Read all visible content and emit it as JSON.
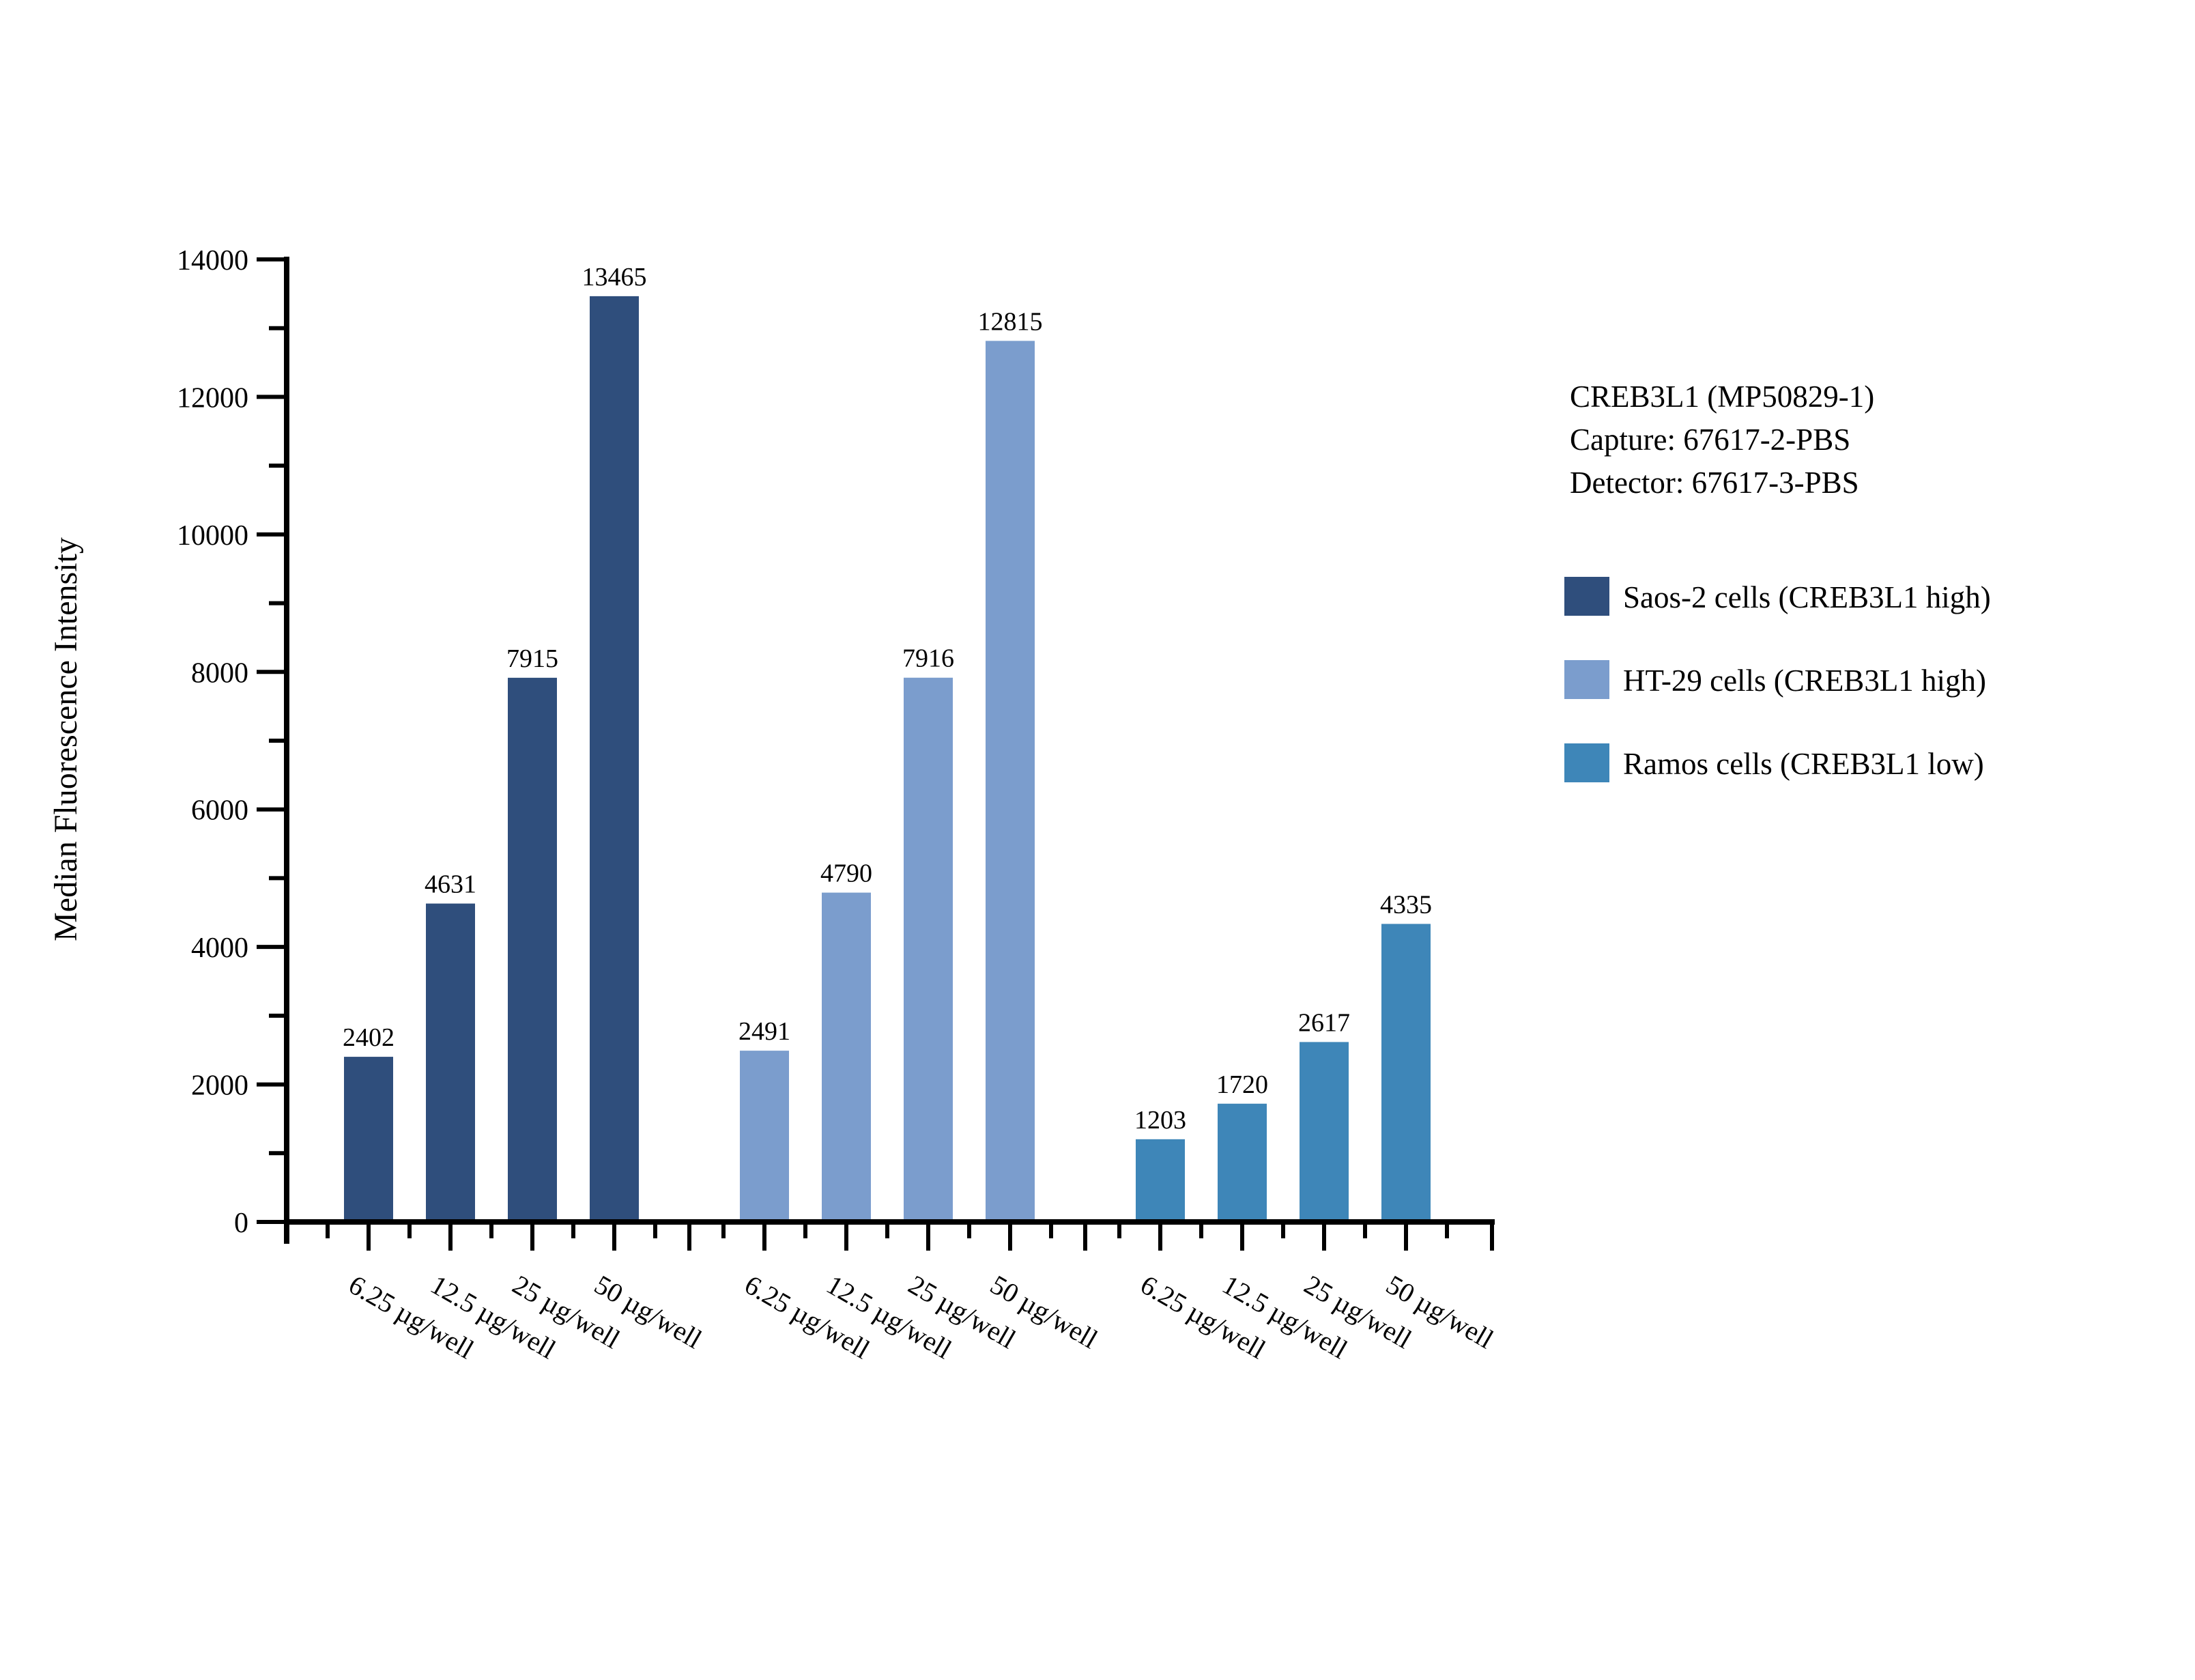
{
  "title_block": {
    "line1": "CREB3L1 (MP50829-1)",
    "line2": "Capture: 67617-2-PBS",
    "line3": "Detector: 67617-3-PBS"
  },
  "legend": [
    {
      "label": "Saos-2 cells (CREB3L1 high)",
      "color": "#2F4E7C"
    },
    {
      "label": "HT-29 cells (CREB3L1 high)",
      "color": "#7B9DCD"
    },
    {
      "label": "Ramos cells (CREB3L1 low)",
      "color": "#3E86B8"
    }
  ],
  "chart_data": {
    "type": "bar",
    "title": "",
    "xlabel": "",
    "ylabel": "Median Fluorescence Intensity",
    "categories": [
      "6.25 µg/well",
      "12.5 µg/well",
      "25 µg/well",
      "50 µg/well"
    ],
    "series": [
      {
        "name": "Saos-2 cells (CREB3L1 high)",
        "color": "#2F4E7C",
        "values": [
          2402,
          4631,
          7915,
          13465
        ]
      },
      {
        "name": "HT-29 cells (CREB3L1 high)",
        "color": "#7B9DCD",
        "values": [
          2491,
          4790,
          7916,
          12815
        ]
      },
      {
        "name": "Ramos cells (CREB3L1 low)",
        "color": "#3E86B8",
        "values": [
          1203,
          1720,
          2617,
          4335
        ]
      }
    ],
    "ylim": [
      0,
      14000
    ],
    "yticks": [
      0,
      2000,
      4000,
      6000,
      8000,
      10000,
      12000,
      14000
    ],
    "ytick_step": 2000,
    "yminor_step": 1000,
    "bar_value_labels": true,
    "grid": "off",
    "legend_position": "right",
    "x_tick_label_rotation_deg": 30
  }
}
